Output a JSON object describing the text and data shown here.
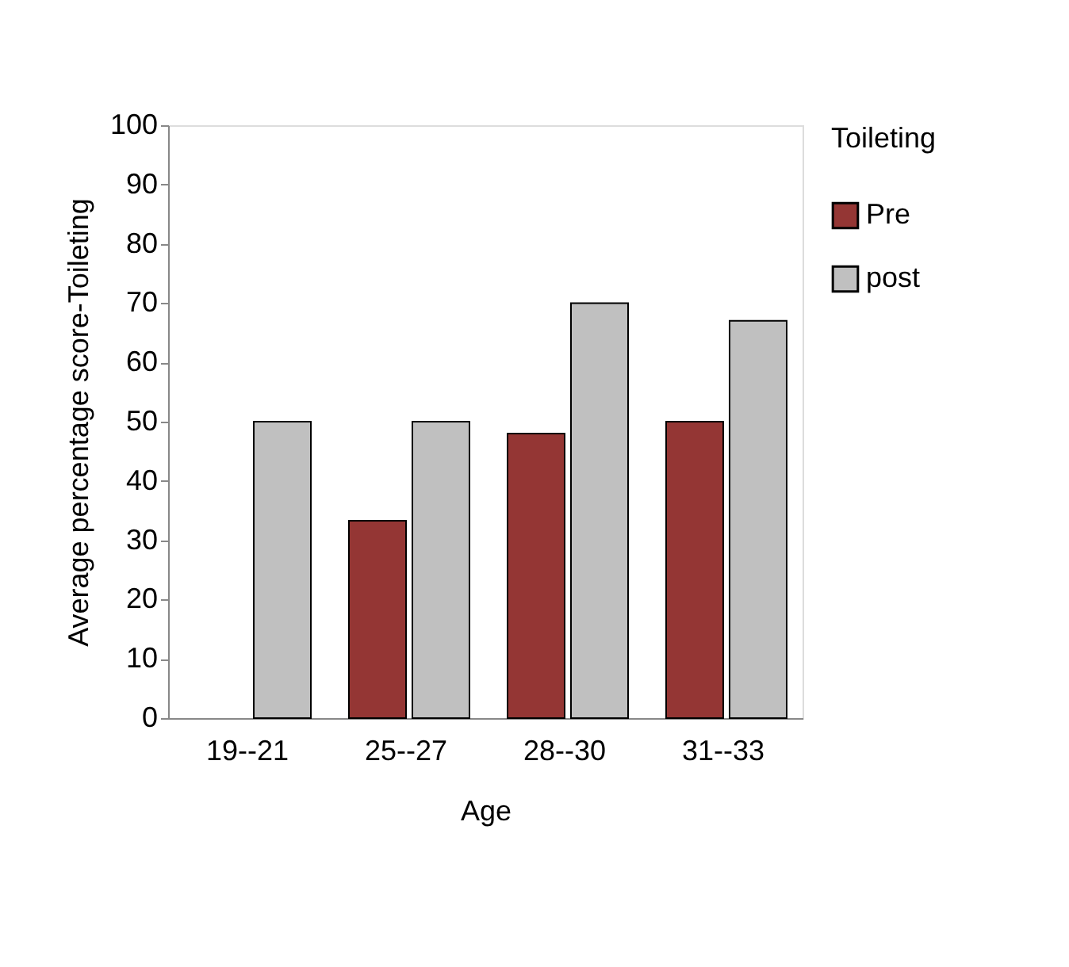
{
  "chart_data": {
    "type": "bar",
    "xlabel": "Age",
    "ylabel": "Average percentage score-Toileting",
    "legend_title": "Toileting",
    "categories": [
      "19--21",
      "25--27",
      "28--30",
      "31--33"
    ],
    "series": [
      {
        "name": "Pre",
        "color": "#943634",
        "values": [
          null,
          33.3,
          48,
          50
        ]
      },
      {
        "name": "post",
        "color": "#c0c0c0",
        "values": [
          50,
          50,
          70,
          67
        ]
      }
    ],
    "ylim": [
      0,
      100
    ],
    "yticks": [
      0,
      10,
      20,
      30,
      40,
      50,
      60,
      70,
      80,
      90,
      100
    ],
    "grid": false,
    "legend": "right"
  }
}
